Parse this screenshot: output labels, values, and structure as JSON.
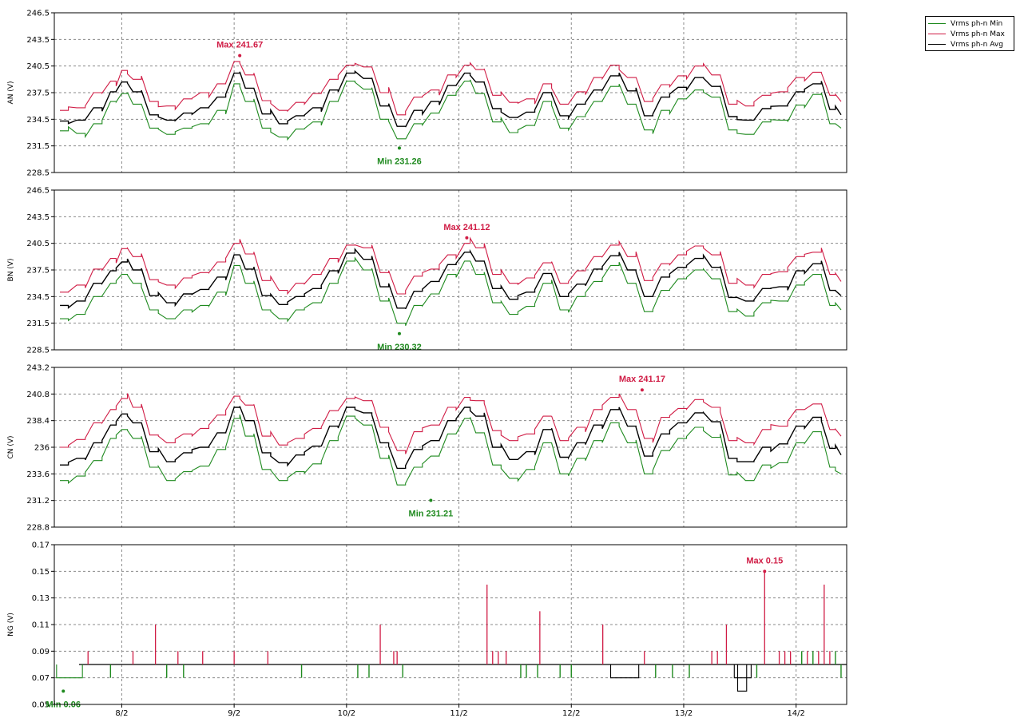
{
  "colors": {
    "min": "#1f8a1f",
    "max": "#d01c45",
    "avg": "#000000",
    "grid": "#8a8a8a"
  },
  "legend": [
    {
      "label": "Vrms ph-n Min",
      "color": "#1f8a1f"
    },
    {
      "label": "Vrms ph-n Max",
      "color": "#d01c45"
    },
    {
      "label": "Vrms ph-n Avg",
      "color": "#000000"
    }
  ],
  "chart_data": [
    {
      "type": "line",
      "ylabel": "AN (V)",
      "ylim": [
        228.5,
        246.5
      ],
      "yticks": [
        "246.5",
        "243.5",
        "240.5",
        "237.5",
        "234.5",
        "231.5",
        "228.5"
      ],
      "xlim": [
        7.4,
        14.45
      ],
      "xticks": [
        8,
        9,
        10,
        11,
        12,
        13,
        14
      ],
      "xtick_labels": [
        "8/2",
        "9/2",
        "10/2",
        "11/2",
        "12/2",
        "13/2",
        "14/2"
      ],
      "x": [
        7.45,
        7.6,
        7.75,
        7.9,
        8.0,
        8.1,
        8.25,
        8.4,
        8.55,
        8.7,
        8.85,
        9.0,
        9.1,
        9.25,
        9.4,
        9.55,
        9.7,
        9.85,
        10.0,
        10.15,
        10.3,
        10.45,
        10.6,
        10.75,
        10.9,
        11.05,
        11.15,
        11.3,
        11.45,
        11.6,
        11.75,
        11.9,
        12.05,
        12.2,
        12.35,
        12.5,
        12.65,
        12.8,
        12.95,
        13.1,
        13.25,
        13.4,
        13.55,
        13.7,
        13.85,
        14.0,
        14.15,
        14.3,
        14.4
      ],
      "series": [
        {
          "name": "Vrms ph-n Min",
          "values": [
            233.2,
            232.9,
            234.0,
            236.5,
            237.4,
            236.2,
            233.5,
            232.8,
            233.5,
            234.0,
            235.5,
            238.5,
            236.5,
            233.5,
            232.5,
            233.4,
            234.2,
            236.5,
            238.8,
            237.9,
            234.5,
            232.3,
            234.0,
            235.2,
            237.2,
            238.8,
            237.4,
            234.2,
            233.0,
            233.8,
            236.5,
            233.5,
            234.8,
            236.5,
            238.2,
            236.2,
            233.3,
            235.5,
            236.8,
            237.8,
            237.0,
            233.3,
            232.8,
            234.2,
            234.4,
            236.1,
            237.3,
            234.0,
            233.5
          ]
        },
        {
          "name": "Vrms ph-n Max",
          "values": [
            235.5,
            235.8,
            237.5,
            238.8,
            240.0,
            239.0,
            236.5,
            236.0,
            236.8,
            237.5,
            238.5,
            241.0,
            239.5,
            236.6,
            235.5,
            236.4,
            237.4,
            239.0,
            240.6,
            240.4,
            237.5,
            235.0,
            237.0,
            237.8,
            239.5,
            240.6,
            240.1,
            237.2,
            236.4,
            236.8,
            238.5,
            236.2,
            237.6,
            239.2,
            240.6,
            239.2,
            236.5,
            238.4,
            239.4,
            240.5,
            239.5,
            236.2,
            236.0,
            237.2,
            237.6,
            239.2,
            239.8,
            237.2,
            236.5
          ]
        },
        {
          "name": "Vrms ph-n Avg",
          "values": [
            234.3,
            234.4,
            235.8,
            237.6,
            238.7,
            237.6,
            235.0,
            234.4,
            235.2,
            235.8,
            237.0,
            239.7,
            238.0,
            235.1,
            234.0,
            234.9,
            235.8,
            237.8,
            239.7,
            239.1,
            236.0,
            233.7,
            235.5,
            236.5,
            238.3,
            239.7,
            238.7,
            235.7,
            234.7,
            235.3,
            237.5,
            234.9,
            236.2,
            237.8,
            239.4,
            237.7,
            234.9,
            237.0,
            238.1,
            239.2,
            238.2,
            234.8,
            234.4,
            235.7,
            236.0,
            237.6,
            238.5,
            235.6,
            235.0
          ]
        }
      ],
      "annotations": [
        {
          "text": "Max 241.67",
          "x": 9.05,
          "y": 241.67,
          "kind": "max"
        },
        {
          "text": "Min 231.26",
          "x": 10.47,
          "y": 231.26,
          "kind": "min"
        }
      ]
    },
    {
      "type": "line",
      "ylabel": "BN (V)",
      "ylim": [
        228.5,
        246.5
      ],
      "yticks": [
        "246.5",
        "243.5",
        "240.5",
        "237.5",
        "234.5",
        "231.5",
        "228.5"
      ],
      "xlim": [
        7.4,
        14.45
      ],
      "xticks": [
        8,
        9,
        10,
        11,
        12,
        13,
        14
      ],
      "xtick_labels": [
        "8/2",
        "9/2",
        "10/2",
        "11/2",
        "12/2",
        "13/2",
        "14/2"
      ],
      "x": [
        7.45,
        7.6,
        7.75,
        7.9,
        8.0,
        8.1,
        8.25,
        8.4,
        8.55,
        8.7,
        8.85,
        9.0,
        9.1,
        9.25,
        9.4,
        9.55,
        9.7,
        9.85,
        10.0,
        10.15,
        10.3,
        10.45,
        10.6,
        10.75,
        10.9,
        11.05,
        11.15,
        11.3,
        11.45,
        11.6,
        11.75,
        11.9,
        12.05,
        12.2,
        12.35,
        12.5,
        12.65,
        12.8,
        12.95,
        13.1,
        13.25,
        13.4,
        13.55,
        13.7,
        13.85,
        14.0,
        14.15,
        14.3,
        14.4
      ],
      "series": [
        {
          "name": "Vrms ph-n Min",
          "values": [
            232.0,
            232.5,
            234.5,
            236.0,
            237.0,
            236.0,
            233.0,
            232.0,
            233.0,
            233.5,
            235.0,
            238.0,
            236.0,
            233.0,
            232.0,
            233.0,
            233.8,
            236.0,
            238.5,
            237.5,
            234.0,
            231.5,
            233.5,
            234.8,
            237.0,
            238.5,
            237.0,
            233.8,
            232.5,
            233.4,
            236.0,
            233.0,
            234.5,
            236.2,
            238.0,
            236.0,
            232.8,
            235.2,
            236.5,
            237.5,
            236.5,
            232.8,
            232.3,
            233.8,
            234.0,
            235.8,
            237.0,
            233.5,
            233.0
          ]
        },
        {
          "name": "Vrms ph-n Max",
          "values": [
            235.0,
            235.8,
            237.6,
            238.8,
            239.9,
            239.0,
            236.4,
            235.8,
            236.6,
            237.2,
            238.4,
            240.5,
            239.3,
            236.3,
            235.2,
            236.0,
            237.0,
            238.8,
            240.3,
            240.0,
            237.2,
            234.8,
            236.8,
            237.6,
            239.2,
            240.5,
            240.0,
            237.0,
            236.0,
            236.6,
            238.3,
            236.0,
            237.4,
            239.0,
            240.3,
            239.0,
            236.3,
            238.2,
            239.2,
            240.2,
            239.2,
            236.0,
            235.8,
            237.0,
            237.3,
            239.0,
            239.5,
            237.0,
            236.2
          ]
        },
        {
          "name": "Vrms ph-n Avg",
          "values": [
            233.5,
            234.0,
            236.0,
            237.4,
            238.4,
            237.5,
            234.6,
            233.8,
            234.8,
            235.3,
            236.7,
            239.2,
            237.6,
            234.6,
            233.6,
            234.5,
            235.4,
            237.4,
            239.4,
            238.7,
            235.6,
            233.2,
            235.1,
            236.2,
            238.1,
            239.5,
            238.5,
            235.4,
            234.2,
            235.0,
            237.1,
            234.5,
            235.9,
            237.6,
            239.1,
            237.5,
            234.5,
            236.7,
            237.8,
            238.8,
            237.8,
            234.4,
            234.0,
            235.4,
            235.6,
            237.4,
            238.2,
            235.2,
            234.6
          ]
        }
      ],
      "annotations": [
        {
          "text": "Max 241.12",
          "x": 11.07,
          "y": 241.12,
          "kind": "max"
        },
        {
          "text": "Min 230.32",
          "x": 10.47,
          "y": 230.32,
          "kind": "min"
        }
      ]
    },
    {
      "type": "line",
      "ylabel": "CN (V)",
      "ylim": [
        228.8,
        243.2
      ],
      "yticks": [
        "243.2",
        "240.8",
        "238.4",
        "236",
        "233.6",
        "231.2",
        "228.8"
      ],
      "xlim": [
        7.4,
        14.45
      ],
      "xticks": [
        8,
        9,
        10,
        11,
        12,
        13,
        14
      ],
      "xtick_labels": [
        "8/2",
        "9/2",
        "10/2",
        "11/2",
        "12/2",
        "13/2",
        "14/2"
      ],
      "x": [
        7.45,
        7.6,
        7.75,
        7.9,
        8.0,
        8.1,
        8.25,
        8.4,
        8.55,
        8.7,
        8.85,
        9.0,
        9.1,
        9.25,
        9.4,
        9.55,
        9.7,
        9.85,
        10.0,
        10.15,
        10.3,
        10.45,
        10.6,
        10.75,
        10.9,
        11.05,
        11.15,
        11.3,
        11.45,
        11.6,
        11.75,
        11.9,
        12.05,
        12.2,
        12.35,
        12.5,
        12.65,
        12.8,
        12.95,
        13.1,
        13.25,
        13.4,
        13.55,
        13.7,
        13.85,
        14.0,
        14.15,
        14.3,
        14.4
      ],
      "series": [
        {
          "name": "Vrms ph-n Min",
          "values": [
            233.0,
            233.4,
            234.8,
            236.8,
            237.6,
            236.8,
            234.2,
            233.0,
            233.8,
            234.3,
            235.8,
            238.6,
            237.0,
            234.0,
            233.0,
            233.8,
            234.5,
            236.6,
            238.8,
            238.0,
            235.0,
            232.6,
            234.2,
            235.2,
            237.2,
            238.6,
            237.3,
            234.4,
            233.2,
            234.0,
            236.4,
            233.6,
            235.0,
            236.6,
            238.2,
            236.4,
            233.6,
            235.7,
            236.8,
            237.8,
            236.9,
            233.5,
            233.0,
            234.4,
            234.6,
            236.4,
            237.4,
            234.2,
            233.6
          ]
        },
        {
          "name": "Vrms ph-n Max",
          "values": [
            236.0,
            236.7,
            238.2,
            239.4,
            240.4,
            239.6,
            237.1,
            236.4,
            237.2,
            237.7,
            238.9,
            240.6,
            239.8,
            237.0,
            236.2,
            236.8,
            237.7,
            239.3,
            240.4,
            240.2,
            237.8,
            235.7,
            237.4,
            238.0,
            239.6,
            240.5,
            240.2,
            237.5,
            236.6,
            237.2,
            238.8,
            236.6,
            237.8,
            239.4,
            240.5,
            239.4,
            236.8,
            238.7,
            239.5,
            240.3,
            239.6,
            236.6,
            236.4,
            237.6,
            237.9,
            239.4,
            239.9,
            237.6,
            237.0
          ]
        },
        {
          "name": "Vrms ph-n Avg",
          "values": [
            234.4,
            235.0,
            236.4,
            238.0,
            239.0,
            238.2,
            235.6,
            234.7,
            235.5,
            236.0,
            237.3,
            239.6,
            238.4,
            235.5,
            234.6,
            235.3,
            236.1,
            237.9,
            239.6,
            239.1,
            236.4,
            234.1,
            235.8,
            236.6,
            238.4,
            239.6,
            238.8,
            236.0,
            234.9,
            235.6,
            237.6,
            235.1,
            236.4,
            238.0,
            239.4,
            237.9,
            235.2,
            237.2,
            238.2,
            239.1,
            238.3,
            235.0,
            234.7,
            236.0,
            236.3,
            237.9,
            238.7,
            235.9,
            235.3
          ]
        }
      ],
      "annotations": [
        {
          "text": "Max 241.17",
          "x": 12.63,
          "y": 241.17,
          "kind": "max"
        },
        {
          "text": "Min 231.21",
          "x": 10.75,
          "y": 231.21,
          "kind": "min"
        }
      ]
    },
    {
      "type": "line",
      "ylabel": "NG (V)",
      "ylim": [
        0.05,
        0.17
      ],
      "yticks": [
        "0.17",
        "0.15",
        "0.13",
        "0.11",
        "0.09",
        "0.07",
        "0.05"
      ],
      "xlim": [
        7.4,
        14.45
      ],
      "xticks": [
        8,
        9,
        10,
        11,
        12,
        13,
        14
      ],
      "xtick_labels": [
        "8/2",
        "9/2",
        "10/2",
        "11/2",
        "12/2",
        "13/2",
        "14/2"
      ],
      "baseline": 0.08,
      "low_segments": [
        {
          "x0": 7.42,
          "x1": 7.65,
          "y": 0.07,
          "kind": "min"
        },
        {
          "x0": 12.35,
          "x1": 12.6,
          "y": 0.07,
          "kind": "avg"
        },
        {
          "x0": 13.45,
          "x1": 13.6,
          "y": 0.07,
          "kind": "avg"
        },
        {
          "x0": 13.48,
          "x1": 13.56,
          "y": 0.06,
          "kind": "avg"
        }
      ],
      "max_spikes": [
        {
          "x": 7.7,
          "y": 0.09
        },
        {
          "x": 8.1,
          "y": 0.09
        },
        {
          "x": 8.3,
          "y": 0.11
        },
        {
          "x": 8.5,
          "y": 0.09
        },
        {
          "x": 8.72,
          "y": 0.09
        },
        {
          "x": 9.0,
          "y": 0.09
        },
        {
          "x": 9.3,
          "y": 0.09
        },
        {
          "x": 10.3,
          "y": 0.11
        },
        {
          "x": 10.42,
          "y": 0.09
        },
        {
          "x": 10.45,
          "y": 0.09
        },
        {
          "x": 11.25,
          "y": 0.14
        },
        {
          "x": 11.3,
          "y": 0.09
        },
        {
          "x": 11.35,
          "y": 0.09
        },
        {
          "x": 11.42,
          "y": 0.09
        },
        {
          "x": 11.72,
          "y": 0.12
        },
        {
          "x": 12.28,
          "y": 0.11
        },
        {
          "x": 12.65,
          "y": 0.09
        },
        {
          "x": 13.25,
          "y": 0.09
        },
        {
          "x": 13.3,
          "y": 0.09
        },
        {
          "x": 13.38,
          "y": 0.11
        },
        {
          "x": 13.72,
          "y": 0.15
        },
        {
          "x": 13.85,
          "y": 0.09
        },
        {
          "x": 13.9,
          "y": 0.09
        },
        {
          "x": 13.95,
          "y": 0.09
        },
        {
          "x": 14.1,
          "y": 0.09
        },
        {
          "x": 14.2,
          "y": 0.09
        },
        {
          "x": 14.25,
          "y": 0.14
        },
        {
          "x": 14.3,
          "y": 0.09
        }
      ],
      "min_dips": [
        {
          "x": 7.9,
          "y": 0.07
        },
        {
          "x": 8.4,
          "y": 0.07
        },
        {
          "x": 8.55,
          "y": 0.07
        },
        {
          "x": 9.6,
          "y": 0.07
        },
        {
          "x": 10.1,
          "y": 0.07
        },
        {
          "x": 10.2,
          "y": 0.07
        },
        {
          "x": 10.5,
          "y": 0.07
        },
        {
          "x": 11.55,
          "y": 0.07
        },
        {
          "x": 11.6,
          "y": 0.07
        },
        {
          "x": 11.7,
          "y": 0.07
        },
        {
          "x": 11.9,
          "y": 0.07
        },
        {
          "x": 12.0,
          "y": 0.07
        },
        {
          "x": 12.75,
          "y": 0.07
        },
        {
          "x": 12.9,
          "y": 0.07
        },
        {
          "x": 13.05,
          "y": 0.07
        },
        {
          "x": 13.65,
          "y": 0.07
        },
        {
          "x": 14.05,
          "y": 0.09
        },
        {
          "x": 14.15,
          "y": 0.09
        },
        {
          "x": 14.35,
          "y": 0.09
        },
        {
          "x": 14.4,
          "y": 0.07
        }
      ],
      "annotations": [
        {
          "text": "Max 0.15",
          "x": 13.72,
          "y": 0.15,
          "kind": "max"
        },
        {
          "text": "Min 0.06",
          "x": 7.48,
          "y": 0.06,
          "kind": "min"
        }
      ]
    }
  ]
}
